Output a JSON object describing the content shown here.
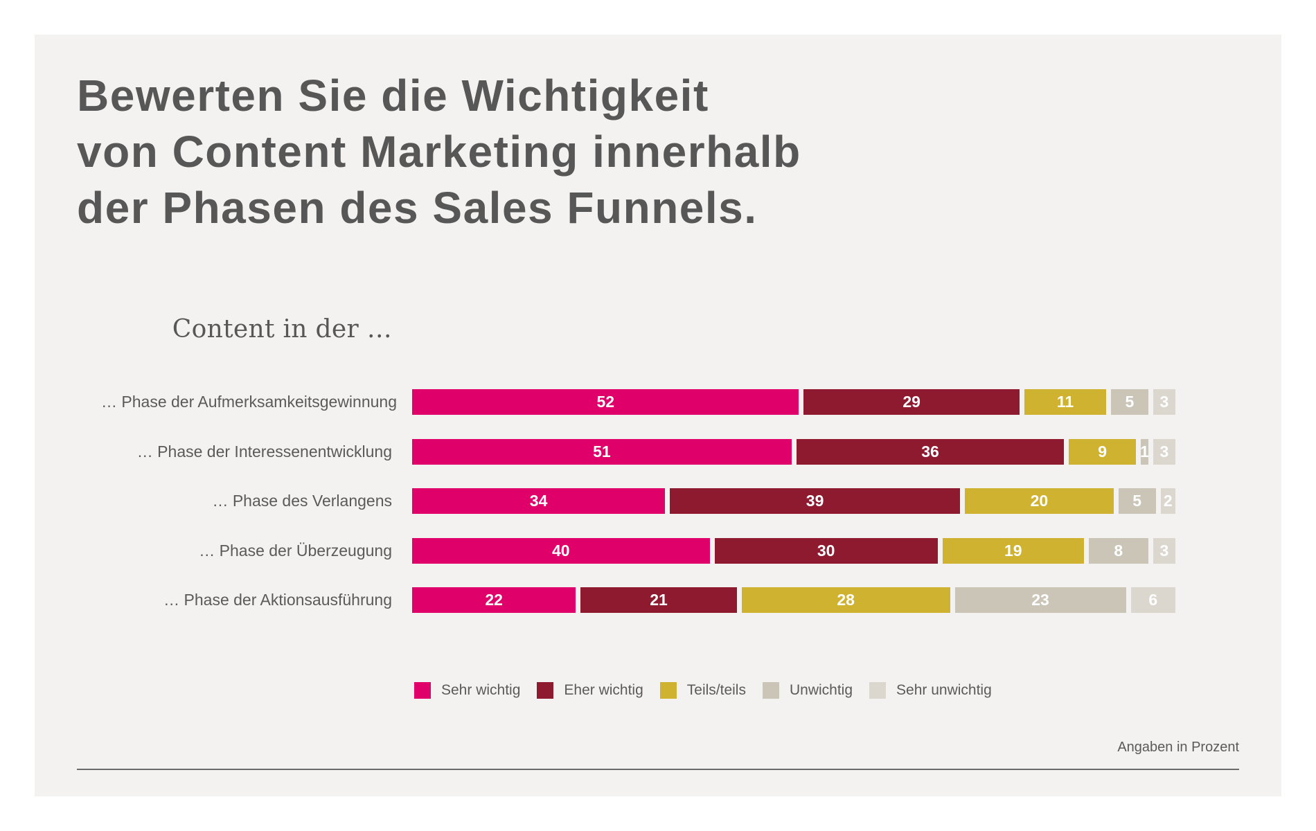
{
  "chart_data": {
    "type": "bar",
    "orientation": "horizontal",
    "stacked": true,
    "title": "Bewerten Sie die Wichtigkeit\nvon Content Marketing innerhalb\nder Phasen des Sales Funnels.",
    "subtitle": "Content in der …",
    "categories": [
      "… Phase der Aufmerksamkeitsgewinnung",
      "… Phase der Interessenentwicklung",
      "… Phase des Verlangens",
      "… Phase der Überzeugung",
      "… Phase der Aktionsausführung"
    ],
    "series": [
      {
        "name": "Sehr wichtig",
        "color": "#E0006A",
        "values": [
          52,
          51,
          34,
          40,
          22
        ]
      },
      {
        "name": "Eher wichtig",
        "color": "#8E1A2F",
        "values": [
          29,
          36,
          39,
          30,
          21
        ]
      },
      {
        "name": "Teils/teils",
        "color": "#CFB230",
        "values": [
          11,
          9,
          20,
          19,
          28
        ]
      },
      {
        "name": "Unwichtig",
        "color": "#CBC5B8",
        "values": [
          5,
          1,
          5,
          8,
          23
        ]
      },
      {
        "name": "Sehr unwichtig",
        "color": "#DBD7CF",
        "values": [
          3,
          3,
          2,
          3,
          6
        ]
      }
    ],
    "xlabel": "",
    "ylabel": "",
    "xlim": [
      0,
      100
    ],
    "grid": false,
    "data_labels": true,
    "legend_position": "bottom",
    "unit_note": "Angaben in Prozent"
  },
  "colors": {
    "background": "#F3F2F0",
    "text": "#575757"
  }
}
